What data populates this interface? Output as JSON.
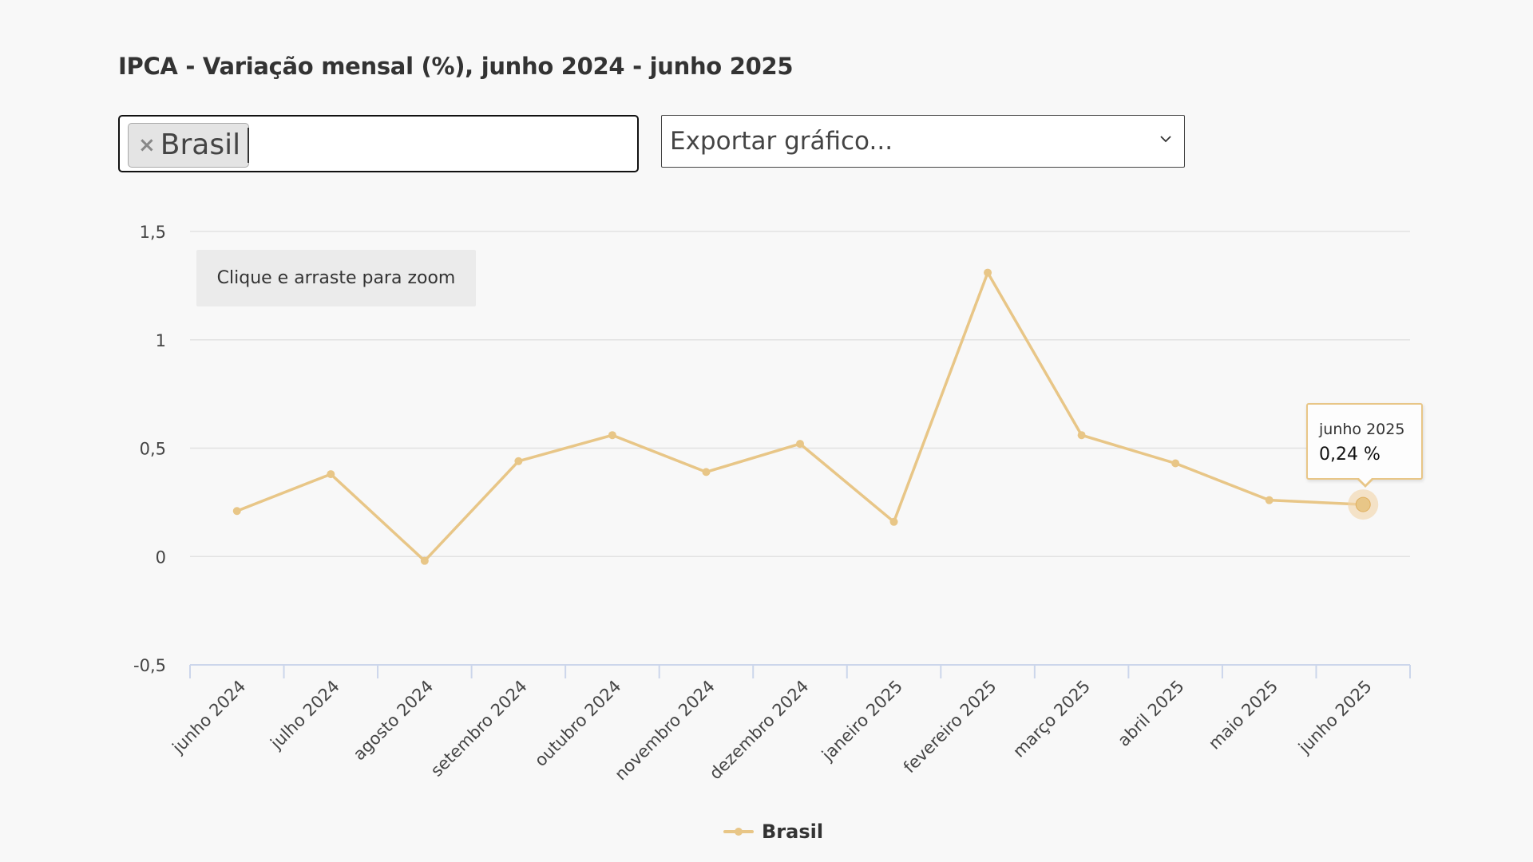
{
  "title": "IPCA - Variação mensal (%), junho 2024 - junho 2025",
  "filter": {
    "chips": [
      {
        "label": "Brasil",
        "remove_symbol": "×"
      }
    ]
  },
  "export_select": {
    "selected": "Exportar gráfico..."
  },
  "zoom_hint": "Clique e arraste para zoom",
  "tooltip": {
    "date": "junho 2025",
    "value": "0,24 %"
  },
  "legend": {
    "label": "Brasil"
  },
  "colors": {
    "series": "#e8c687",
    "highlight": "#f1d3a6",
    "grid": "#e2e2e2",
    "axis": "#ccd6eb"
  },
  "chart_data": {
    "type": "line",
    "title": "IPCA - Variação mensal (%), junho 2024 - junho 2025",
    "xlabel": "",
    "ylabel": "",
    "categories": [
      "junho 2024",
      "julho 2024",
      "agosto 2024",
      "setembro 2024",
      "outubro 2024",
      "novembro 2024",
      "dezembro 2024",
      "janeiro 2025",
      "fevereiro 2025",
      "março 2025",
      "abril 2025",
      "maio 2025",
      "junho 2025"
    ],
    "series": [
      {
        "name": "Brasil",
        "values": [
          0.21,
          0.38,
          -0.02,
          0.44,
          0.56,
          0.39,
          0.52,
          0.16,
          1.31,
          0.56,
          0.43,
          0.26,
          0.24
        ]
      }
    ],
    "ylim": [
      -0.5,
      1.5
    ],
    "yticks": [
      -0.5,
      0,
      0.5,
      1,
      1.5
    ],
    "ytick_labels": [
      "-0,5",
      "0",
      "0,5",
      "1",
      "1,5"
    ],
    "grid": true,
    "legend_position": "bottom-center",
    "highlighted_index": 12
  }
}
